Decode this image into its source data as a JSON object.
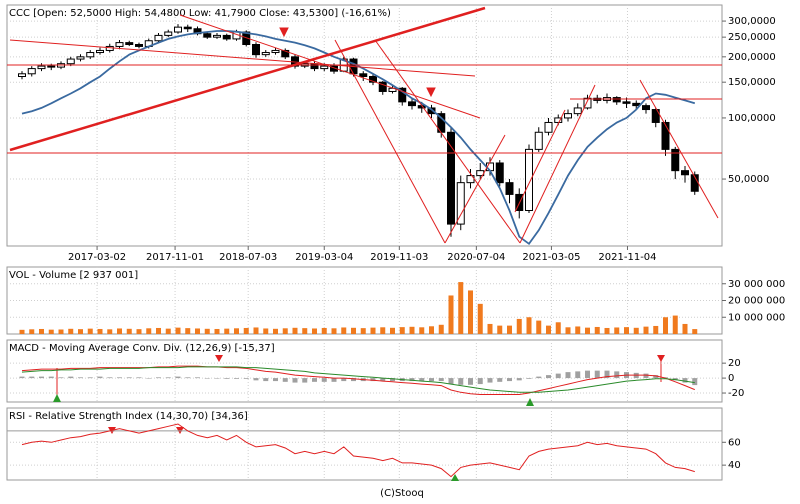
{
  "chart_data": [
    {
      "type": "candlestick",
      "title": "CCC [Open: 52,5000  High: 54,4800  Low: 41,7900  Close: 43,5300] (-16,61%)",
      "log": true,
      "grid": true,
      "ylim": [
        23.4,
        360
      ],
      "yticks": [
        {
          "value": 300,
          "label": "300,0000"
        },
        {
          "value": 250,
          "label": "250,0000"
        },
        {
          "value": 200,
          "label": "200,0000"
        },
        {
          "value": 150,
          "label": "150,0000"
        },
        {
          "value": 100,
          "label": "100,0000"
        },
        {
          "value": 50,
          "label": "50,0000"
        }
      ],
      "xticks": [
        {
          "value": 7.7,
          "label": "2017-03-02"
        },
        {
          "value": 15.7,
          "label": "2017-11-01"
        },
        {
          "value": 23.2,
          "label": "2018-07-03"
        },
        {
          "value": 31.0,
          "label": "2019-03-04"
        },
        {
          "value": 38.7,
          "label": "2019-11-03"
        },
        {
          "value": 46.6,
          "label": "2020-07-04"
        },
        {
          "value": 54.3,
          "label": "2021-03-05"
        },
        {
          "value": 62.1,
          "label": "2021-11-04"
        }
      ],
      "open": [
        160,
        165,
        175,
        180,
        178,
        185,
        195,
        200,
        210,
        215,
        225,
        235,
        230,
        225,
        240,
        255,
        265,
        280,
        275,
        260,
        250,
        255,
        245,
        265,
        230,
        205,
        210,
        215,
        200,
        180,
        185,
        175,
        180,
        170,
        195,
        165,
        160,
        150,
        135,
        140,
        120,
        115,
        112,
        105,
        85,
        30,
        48,
        52,
        55,
        60,
        48,
        42,
        35,
        70,
        85,
        95,
        100,
        105,
        112,
        125,
        122,
        126,
        120,
        118,
        115,
        110,
        95,
        70,
        55,
        52.5
      ],
      "high": [
        170,
        180,
        186,
        185,
        190,
        200,
        206,
        216,
        222,
        232,
        242,
        240,
        235,
        246,
        262,
        272,
        290,
        288,
        282,
        266,
        262,
        260,
        272,
        270,
        236,
        216,
        222,
        220,
        206,
        190,
        190,
        186,
        186,
        200,
        198,
        170,
        164,
        152,
        146,
        142,
        124,
        120,
        116,
        108,
        90,
        52,
        56,
        60,
        64,
        62,
        50,
        45,
        74,
        90,
        100,
        104,
        110,
        118,
        130,
        130,
        132,
        128,
        126,
        122,
        118,
        112,
        98,
        72,
        58,
        54.48
      ],
      "low": [
        155,
        160,
        170,
        172,
        174,
        180,
        190,
        195,
        205,
        210,
        218,
        226,
        220,
        220,
        235,
        250,
        260,
        265,
        255,
        245,
        245,
        240,
        240,
        225,
        198,
        200,
        205,
        195,
        175,
        176,
        170,
        170,
        165,
        168,
        160,
        152,
        145,
        130,
        132,
        115,
        110,
        106,
        100,
        80,
        26,
        28,
        45,
        50,
        52,
        46,
        38,
        32,
        34,
        68,
        82,
        92,
        96,
        102,
        110,
        118,
        118,
        116,
        112,
        110,
        105,
        90,
        65,
        50,
        48,
        41.79
      ],
      "close": [
        165,
        175,
        180,
        178,
        185,
        195,
        200,
        210,
        215,
        225,
        235,
        230,
        225,
        240,
        255,
        265,
        280,
        275,
        260,
        250,
        255,
        245,
        265,
        230,
        205,
        210,
        215,
        200,
        180,
        185,
        175,
        180,
        170,
        195,
        165,
        160,
        150,
        135,
        140,
        120,
        115,
        112,
        105,
        85,
        30,
        48,
        52,
        55,
        60,
        48,
        42,
        35,
        70,
        85,
        95,
        100,
        105,
        112,
        125,
        122,
        126,
        120,
        118,
        115,
        110,
        95,
        70,
        55,
        52.5,
        43.53
      ],
      "overlay": {
        "color": "#3a6aa0",
        "values": [
          105,
          108,
          112,
          118,
          125,
          132,
          140,
          150,
          160,
          175,
          190,
          205,
          215,
          225,
          235,
          245,
          252,
          258,
          262,
          265,
          268,
          268,
          266,
          262,
          258,
          252,
          245,
          240,
          235,
          228,
          220,
          210,
          200,
          192,
          185,
          175,
          165,
          155,
          145,
          135,
          125,
          118,
          110,
          100,
          90,
          80,
          70,
          62,
          55,
          45,
          35,
          26,
          24,
          28,
          34,
          42,
          52,
          62,
          72,
          80,
          88,
          95,
          100,
          110,
          125,
          132,
          130,
          126,
          122,
          118
        ]
      }
    },
    {
      "type": "bar",
      "title": "VOL - Volume [2 937 001]",
      "color": "#f07a1e",
      "grid": true,
      "ylim": [
        0,
        40000000
      ],
      "yticks": [
        {
          "value": 30000000,
          "label": "30 000 000"
        },
        {
          "value": 20000000,
          "label": "20 000 000"
        },
        {
          "value": 10000000,
          "label": "10 000 000"
        }
      ],
      "values": [
        2500000,
        2800000,
        3000000,
        2600000,
        2700000,
        3100000,
        2900000,
        3200000,
        3000000,
        2800000,
        3300000,
        3100000,
        2900000,
        3400000,
        3600000,
        3200000,
        3800000,
        3500000,
        3300000,
        3100000,
        3000000,
        3200000,
        3400000,
        3600000,
        3900000,
        3300000,
        3100000,
        3400000,
        3700000,
        3500000,
        3300000,
        3600000,
        3400000,
        3900000,
        3700000,
        3500000,
        3800000,
        4000000,
        3700000,
        4100000,
        4300000,
        4000000,
        4600000,
        5500000,
        23000000,
        31000000,
        26000000,
        18000000,
        6000000,
        5000000,
        5000000,
        9000000,
        10000000,
        8000000,
        5000000,
        7000000,
        4000000,
        4500000,
        3800000,
        4200000,
        3600000,
        3900000,
        4100000,
        3700000,
        4400000,
        4800000,
        10000000,
        11000000,
        6000000,
        2937001
      ]
    },
    {
      "type": "line",
      "title": "MACD - Moving Average Conv. Div. (12,26,9) [-15,37]",
      "grid": true,
      "ylim": [
        -32,
        51
      ],
      "yticks": [
        20,
        0,
        -20
      ],
      "series": [
        {
          "color": "#e02020",
          "values": [
            10,
            11,
            12,
            12,
            12,
            13,
            13,
            13,
            14,
            14,
            14,
            14,
            14,
            14,
            15,
            15,
            16,
            16,
            16,
            15,
            15,
            14,
            14,
            13,
            11,
            9,
            8,
            6,
            4,
            3,
            2,
            1,
            0,
            0,
            -1,
            -2,
            -3,
            -4,
            -5,
            -6,
            -7,
            -8,
            -9,
            -10,
            -16,
            -19,
            -21,
            -22,
            -22,
            -22,
            -22,
            -22,
            -20,
            -17,
            -14,
            -11,
            -8,
            -5,
            -2,
            0,
            2,
            3,
            4,
            4,
            4,
            3,
            0,
            -5,
            -10,
            -15.37
          ]
        },
        {
          "color": "#2a8a2a",
          "values": [
            8,
            9,
            10,
            10,
            11,
            11,
            12,
            12,
            12,
            13,
            13,
            13,
            13,
            14,
            14,
            14,
            14,
            15,
            15,
            15,
            15,
            15,
            15,
            14,
            14,
            13,
            12,
            11,
            10,
            9,
            7,
            6,
            5,
            4,
            3,
            2,
            1,
            0,
            -1,
            -2,
            -3,
            -4,
            -5,
            -6,
            -8,
            -10,
            -12,
            -14,
            -16,
            -17,
            -18,
            -19,
            -19,
            -19,
            -18,
            -17,
            -16,
            -14,
            -12,
            -10,
            -8,
            -6,
            -4,
            -3,
            -2,
            -1,
            -1,
            -2,
            -4,
            -6
          ]
        }
      ],
      "histogram": {
        "color": "#a0a0a0",
        "values": [
          2,
          2,
          2,
          2,
          1,
          2,
          1,
          1,
          2,
          1,
          1,
          1,
          1,
          0,
          1,
          1,
          2,
          1,
          1,
          0,
          0,
          -1,
          -1,
          -1,
          -3,
          -4,
          -4,
          -5,
          -6,
          -6,
          -5,
          -5,
          -5,
          -4,
          -4,
          -4,
          -4,
          -4,
          -4,
          -4,
          -4,
          -4,
          -4,
          -4,
          -8,
          -9,
          -9,
          -8,
          -6,
          -5,
          -4,
          -3,
          -1,
          2,
          4,
          6,
          8,
          9,
          10,
          10,
          10,
          9,
          8,
          7,
          6,
          4,
          1,
          -3,
          -6,
          -9.37
        ]
      }
    },
    {
      "type": "line",
      "title": "RSI - Relative Strength Index (14,30,70) [34,36]",
      "grid": true,
      "ylim": [
        27,
        90
      ],
      "yticks": [
        60,
        40
      ],
      "reference_lines": [
        70
      ],
      "series": [
        {
          "color": "#e02020",
          "values": [
            58,
            60,
            61,
            60,
            62,
            64,
            65,
            67,
            68,
            70,
            72,
            70,
            68,
            70,
            72,
            74,
            76,
            70,
            66,
            64,
            66,
            62,
            66,
            60,
            56,
            57,
            58,
            55,
            50,
            52,
            50,
            52,
            50,
            56,
            48,
            47,
            46,
            44,
            46,
            42,
            42,
            41,
            40,
            37,
            30,
            38,
            40,
            41,
            42,
            40,
            38,
            36,
            48,
            52,
            54,
            55,
            56,
            57,
            60,
            58,
            59,
            57,
            56,
            55,
            54,
            50,
            42,
            38,
            37,
            34.36
          ]
        }
      ]
    }
  ],
  "footer": "(C)Stooq"
}
